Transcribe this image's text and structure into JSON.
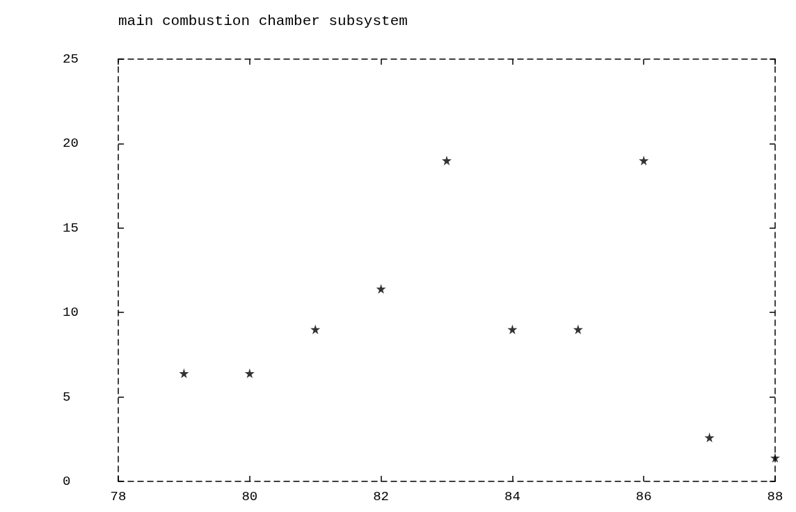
{
  "chart_data": {
    "type": "scatter",
    "title": "main combustion chamber subsystem",
    "x": [
      79,
      80,
      81,
      82,
      83,
      84,
      85,
      86,
      87,
      88
    ],
    "values": [
      6.4,
      6.4,
      9,
      11.4,
      19,
      9,
      9,
      19,
      2.6,
      1.4
    ],
    "color": "#000000",
    "xlim": [
      78,
      88
    ],
    "xticks": [
      78,
      80,
      82,
      84,
      86,
      88
    ],
    "ylim": [
      0,
      25
    ],
    "yticks": [
      0,
      5,
      10,
      15,
      20,
      25
    ],
    "grid": false,
    "marker": "star"
  }
}
